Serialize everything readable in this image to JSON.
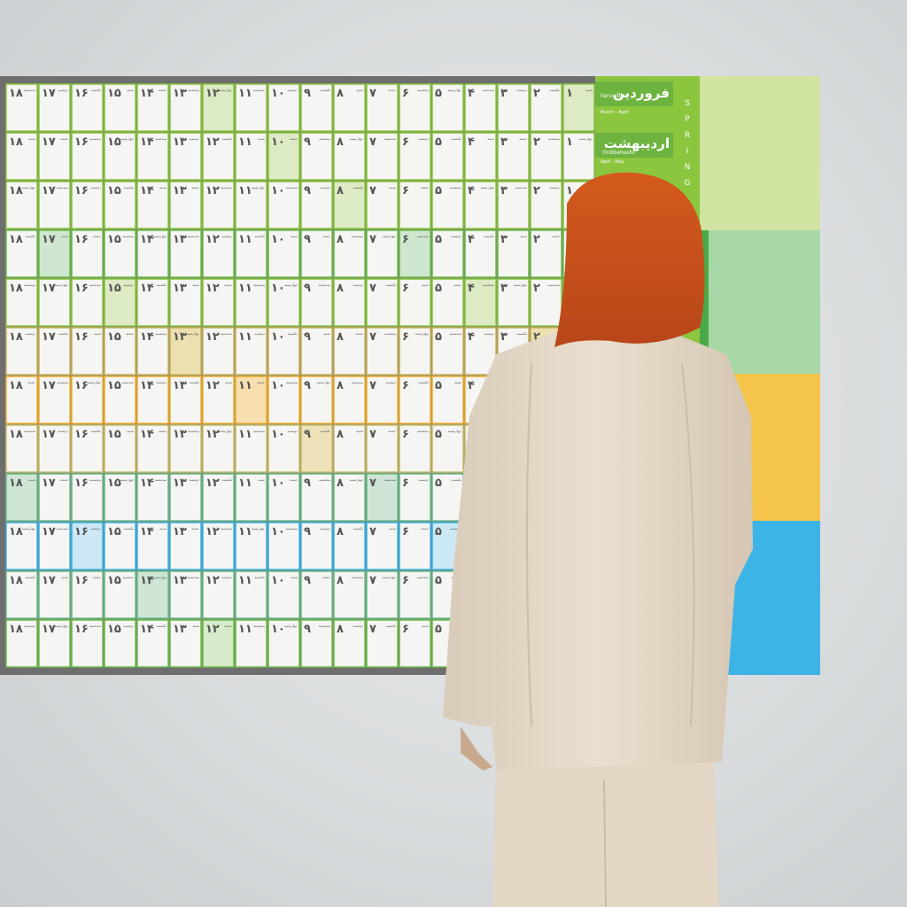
{
  "calendar": {
    "season": "SPRING",
    "months": [
      {
        "name": "فروردین",
        "latin": "Farvardin",
        "range": "March - April"
      },
      {
        "name": "اردیبهشت",
        "latin": "Ordibehesht",
        "range": "April - May"
      }
    ],
    "days": [
      "۱",
      "۲",
      "۳",
      "۴",
      "۵",
      "۶",
      "۷",
      "۸",
      "۹",
      "۱۰",
      "۱۱",
      "۱۲",
      "۱۳",
      "۱۴",
      "۱۵",
      "۱۶",
      "۱۷",
      "۱۸"
    ],
    "weekdays": [
      "شنبه",
      "یکشنبه",
      "دوشنبه",
      "سه‌شنبه",
      "چهارشنبه",
      "پنجشنبه",
      "جمعه"
    ]
  }
}
